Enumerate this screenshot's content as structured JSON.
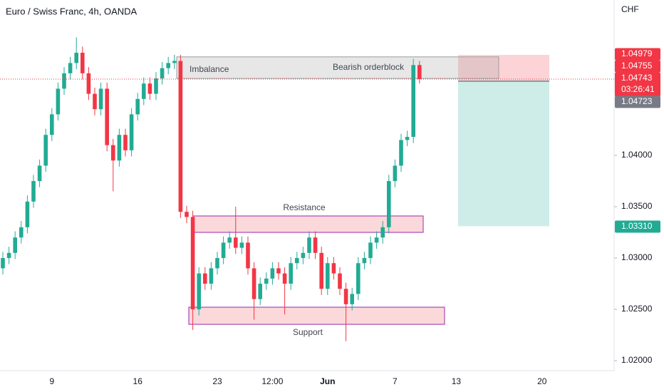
{
  "chart_data": {
    "type": "candlestick",
    "title": "Euro / Swiss Franc, 4h, OANDA",
    "y_axis_label": "CHF",
    "categories": [
      null,
      null,
      null,
      null,
      null,
      null,
      null,
      null,
      "9",
      null,
      null,
      null,
      null,
      null,
      null,
      null,
      null,
      null,
      null,
      null,
      null,
      null,
      "16",
      null,
      null,
      null,
      null,
      null,
      null,
      null,
      null,
      null,
      null,
      null,
      null,
      "23",
      null,
      null,
      null,
      null,
      null,
      null,
      null,
      null,
      "12:00",
      null,
      null,
      null,
      null,
      null,
      null,
      null,
      null,
      "Jun",
      null,
      null,
      null,
      null,
      null,
      null,
      null,
      null,
      null,
      null,
      "7",
      null,
      null,
      null,
      null,
      null,
      null,
      null,
      null,
      null,
      "13",
      null,
      null,
      null,
      null,
      null,
      null,
      null,
      null,
      null,
      null,
      null,
      null,
      null,
      "20",
      null,
      null,
      null,
      null,
      null,
      null,
      null,
      null,
      null,
      null,
      null
    ],
    "open": [
      1.029,
      1.03,
      1.0305,
      1.032,
      1.033,
      1.0355,
      1.0375,
      1.039,
      1.042,
      1.044,
      1.0465,
      1.048,
      1.049,
      1.05,
      1.048,
      1.046,
      1.0445,
      1.0465,
      1.041,
      1.0395,
      1.042,
      1.0405,
      1.044,
      1.0455,
      1.047,
      1.046,
      1.0475,
      1.0485,
      1.049,
      1.0492,
      1.0345,
      1.034,
      1.025,
      1.0285,
      1.0275,
      1.029,
      1.03,
      1.0315,
      1.032,
      1.031,
      1.0315,
      1.029,
      1.026,
      1.0275,
      1.028,
      1.029,
      1.0285,
      1.0275,
      1.0295,
      1.03,
      1.0305,
      1.032,
      1.0305,
      1.027,
      1.0295,
      1.0285,
      1.027,
      1.0255,
      1.0265,
      1.0295,
      1.03,
      1.0315,
      1.032,
      1.033,
      1.0375,
      1.039,
      1.0415,
      1.0418,
      1.0488,
      null,
      null,
      null,
      null,
      null,
      null,
      null,
      null,
      null,
      null,
      null,
      null,
      null,
      null,
      null,
      null,
      null,
      null,
      null,
      null,
      null,
      null,
      null,
      null,
      null,
      null,
      null,
      null,
      null,
      null,
      null
    ],
    "high": [
      1.0306,
      1.0311,
      1.0326,
      1.0336,
      1.0361,
      1.0381,
      1.0396,
      1.0426,
      1.0446,
      1.0471,
      1.0486,
      1.0496,
      1.0515,
      1.0506,
      1.0486,
      1.0466,
      1.0471,
      1.0471,
      1.0416,
      1.0426,
      1.0426,
      1.0446,
      1.0461,
      1.0476,
      1.0476,
      1.0481,
      1.0491,
      1.0496,
      1.0498,
      1.0498,
      1.0351,
      1.0346,
      1.0291,
      1.0291,
      1.0296,
      1.0306,
      1.0321,
      1.0326,
      1.035,
      1.0321,
      1.0321,
      1.0296,
      1.0281,
      1.0286,
      1.0296,
      1.0296,
      1.0291,
      1.0301,
      1.0306,
      1.0311,
      1.0326,
      1.0326,
      1.0311,
      1.0301,
      1.0301,
      1.0291,
      1.0276,
      1.0271,
      1.0301,
      1.0306,
      1.0321,
      1.0326,
      1.0336,
      1.0381,
      1.0396,
      1.0421,
      1.0424,
      1.0494,
      1.0492,
      null,
      null,
      null,
      null,
      null,
      null,
      null,
      null,
      null,
      null,
      null,
      null,
      null,
      null,
      null,
      null,
      null,
      null,
      null,
      null,
      null,
      null,
      null,
      null,
      null,
      null,
      null,
      null,
      null,
      null,
      null
    ],
    "low": [
      1.0284,
      1.0294,
      1.0299,
      1.0314,
      1.0324,
      1.0349,
      1.0369,
      1.0384,
      1.0414,
      1.0434,
      1.0459,
      1.0474,
      1.0484,
      1.0474,
      1.0454,
      1.0439,
      1.0439,
      1.0404,
      1.0365,
      1.0389,
      1.0399,
      1.0399,
      1.0434,
      1.0449,
      1.0454,
      1.0454,
      1.0469,
      1.0479,
      1.0484,
      1.0339,
      1.0334,
      1.023,
      1.0244,
      1.0269,
      1.0269,
      1.0284,
      1.0294,
      1.0309,
      1.0304,
      1.0304,
      1.0284,
      1.024,
      1.0254,
      1.0269,
      1.0274,
      1.0279,
      1.0245,
      1.0269,
      1.0289,
      1.0294,
      1.0299,
      1.0299,
      1.0264,
      1.0264,
      1.0279,
      1.0264,
      1.0219,
      1.0249,
      1.0259,
      1.0289,
      1.0294,
      1.0309,
      1.0314,
      1.0324,
      1.0369,
      1.0384,
      1.0409,
      1.0412,
      1.047,
      null,
      null,
      null,
      null,
      null,
      null,
      null,
      null,
      null,
      null,
      null,
      null,
      null,
      null,
      null,
      null,
      null,
      null,
      null,
      null,
      null,
      null,
      null,
      null,
      null,
      null,
      null,
      null,
      null,
      null,
      null
    ],
    "close": [
      1.03,
      1.0305,
      1.032,
      1.033,
      1.0355,
      1.0375,
      1.039,
      1.042,
      1.044,
      1.0465,
      1.048,
      1.049,
      1.05,
      1.048,
      1.046,
      1.0445,
      1.0465,
      1.041,
      1.0395,
      1.042,
      1.0405,
      1.044,
      1.0455,
      1.047,
      1.046,
      1.0475,
      1.0485,
      1.049,
      1.0492,
      1.0345,
      1.034,
      1.025,
      1.0285,
      1.0275,
      1.029,
      1.03,
      1.0315,
      1.032,
      1.031,
      1.0315,
      1.029,
      1.026,
      1.0275,
      1.028,
      1.029,
      1.0285,
      1.0275,
      1.0295,
      1.03,
      1.0305,
      1.032,
      1.0305,
      1.027,
      1.0295,
      1.0285,
      1.027,
      1.0255,
      1.0265,
      1.0295,
      1.03,
      1.0315,
      1.032,
      1.033,
      1.0375,
      1.039,
      1.0415,
      1.0418,
      1.0488,
      1.04743,
      null,
      null,
      null,
      null,
      null,
      null,
      null,
      null,
      null,
      null,
      null,
      null,
      null,
      null,
      null,
      null,
      null,
      null,
      null,
      null,
      null,
      null,
      null,
      null,
      null,
      null,
      null,
      null,
      null,
      null,
      null
    ],
    "up_color": "#22ab94",
    "down_color": "#f23645",
    "ylim": [
      1.01903,
      1.05514
    ],
    "yticks": [
      {
        "value": 1.02,
        "label": "1.02000"
      },
      {
        "value": 1.025,
        "label": "1.02500"
      },
      {
        "value": 1.03,
        "label": "1.03000"
      },
      {
        "value": 1.035,
        "label": "1.03500"
      },
      {
        "value": 1.04,
        "label": "1.04000"
      }
    ],
    "grid": false,
    "zones": [
      {
        "labels": [
          "Imbalance",
          "Bearish orderblock"
        ],
        "top": 1.0496,
        "bottom": 1.0475,
        "fill": "#9e9e9e",
        "stroke": "#9e9e9e"
      },
      {
        "labels": [
          "Resistance"
        ],
        "top": 1.0341,
        "bottom": 1.0325,
        "fill": "#f7a8ad",
        "stroke": "#9c27b0"
      },
      {
        "labels": [
          "Support"
        ],
        "top": 1.02521,
        "bottom": 1.02354,
        "fill": "#f7a8ad",
        "stroke": "#9c27b0"
      }
    ],
    "position": {
      "stop": 1.04979,
      "entry": 1.04723,
      "target": 1.0331
    },
    "current_price": 1.04743,
    "price_labels": [
      {
        "value": 1.04979,
        "label": "1.04979",
        "color": "#f23645"
      },
      {
        "value": 1.04755,
        "label": "1.04755",
        "color": "#f23645"
      },
      {
        "value": 1.04743,
        "label": "1.04743",
        "color": "#f23645",
        "countdown": "03:26:41"
      },
      {
        "value": 1.04723,
        "label": "1.04723",
        "color": "#787b86"
      },
      {
        "value": 1.0331,
        "label": "1.03310",
        "color": "#22ab94"
      }
    ]
  }
}
